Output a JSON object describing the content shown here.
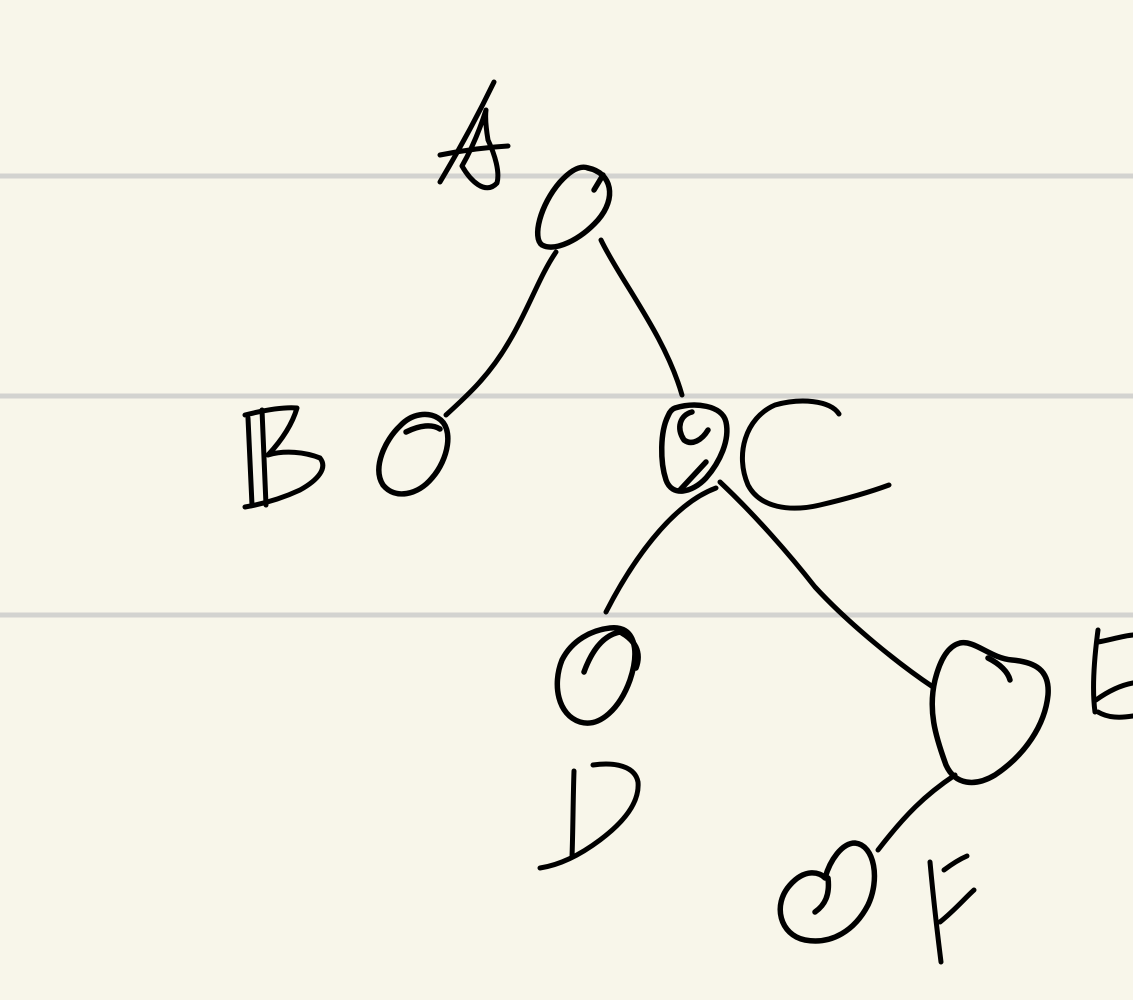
{
  "diagram": {
    "kind": "handwritten binary tree",
    "paper": {
      "background": "#f8f6ea",
      "rule_color": "#d3d3d0"
    },
    "ink_color": "#000000",
    "nodes": [
      {
        "id": "A",
        "label": "A"
      },
      {
        "id": "B",
        "label": "B"
      },
      {
        "id": "C",
        "label": "C"
      },
      {
        "id": "D",
        "label": "D"
      },
      {
        "id": "E",
        "label": "E"
      },
      {
        "id": "F",
        "label": "F"
      }
    ],
    "edges": [
      {
        "from": "A",
        "to": "B"
      },
      {
        "from": "A",
        "to": "C"
      },
      {
        "from": "C",
        "to": "D"
      },
      {
        "from": "C",
        "to": "E"
      },
      {
        "from": "E",
        "to": "F"
      }
    ]
  }
}
